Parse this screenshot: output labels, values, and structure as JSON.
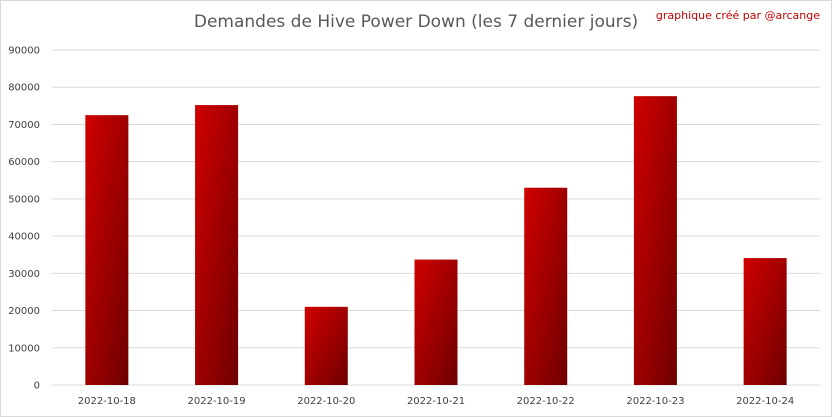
{
  "chart_data": {
    "type": "bar",
    "title": "Demandes de Hive Power Down (les 7 dernier jours)",
    "annotation": "graphique créé par @arcange",
    "categories": [
      "2022-10-18",
      "2022-10-19",
      "2022-10-20",
      "2022-10-21",
      "2022-10-22",
      "2022-10-23",
      "2022-10-24"
    ],
    "values": [
      72500,
      75200,
      21000,
      33700,
      53000,
      77600,
      34100
    ],
    "ylim": [
      0,
      90000
    ],
    "yticks": [
      "0",
      "10000",
      "20000",
      "30000",
      "40000",
      "50000",
      "60000",
      "70000",
      "80000",
      "90000"
    ],
    "xlabel": "",
    "ylabel": "",
    "grid": true,
    "legend": "none",
    "colors": {
      "bar_light": "#d00000",
      "bar_dark": "#6e0000",
      "grid": "#d9d9d9",
      "credit": "#c00000"
    }
  }
}
